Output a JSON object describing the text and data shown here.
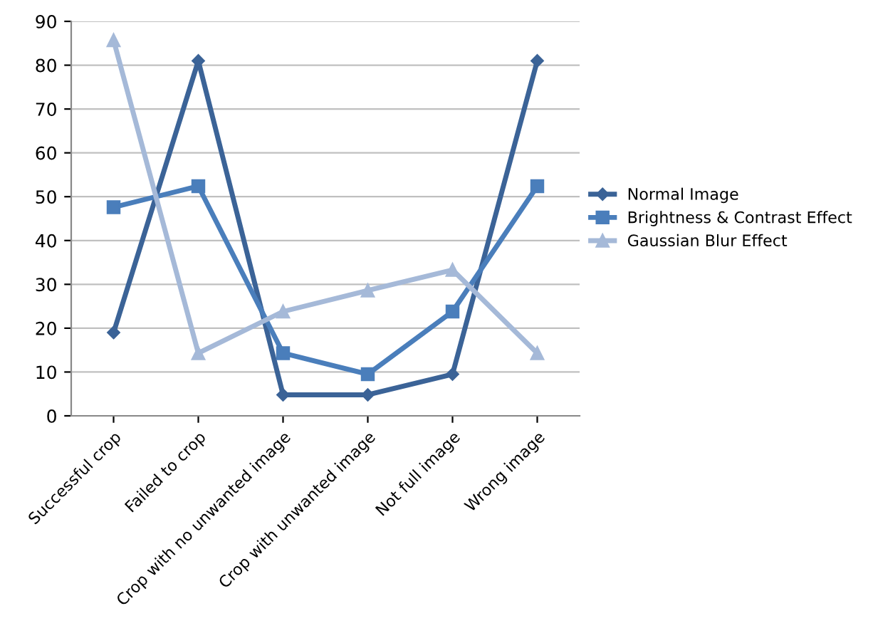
{
  "chart_data": {
    "type": "line",
    "categories": [
      "Successful crop",
      "Failed to crop",
      "Crop with no unwanted image",
      "Crop with unwanted image",
      "Not full image",
      "Wrong image"
    ],
    "series": [
      {
        "name": "Normal Image",
        "color": "#3b6397",
        "marker": "diamond",
        "values": [
          19,
          81,
          4.8,
          4.8,
          9.5,
          81
        ]
      },
      {
        "name": "Brightness & Contrast Effect",
        "color": "#4a7ebb",
        "marker": "square",
        "values": [
          47.6,
          52.4,
          14.3,
          9.5,
          23.8,
          52.4
        ]
      },
      {
        "name": "Gaussian Blur Effect",
        "color": "#a5b9d8",
        "marker": "triangle",
        "values": [
          85.7,
          14.3,
          23.8,
          28.6,
          33.3,
          14.3
        ]
      }
    ],
    "ylim": [
      0,
      90
    ],
    "yticks": [
      0,
      10,
      20,
      30,
      40,
      50,
      60,
      70,
      80,
      90
    ],
    "grid": "y",
    "legend": "right",
    "line_style": "solid"
  }
}
